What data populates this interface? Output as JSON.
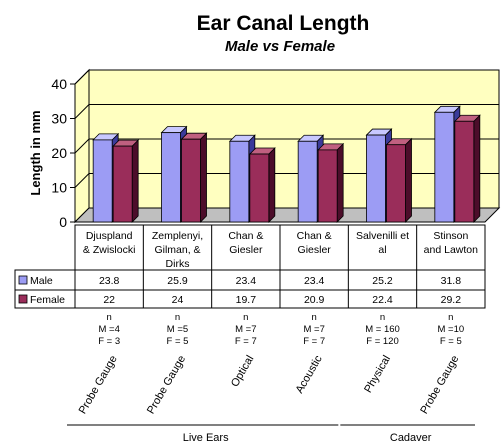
{
  "chart_data": {
    "type": "bar",
    "title": "Ear Canal Length",
    "subtitle": "Male vs Female",
    "ylabel": "Length in mm",
    "ylim": [
      0,
      40
    ],
    "yticks": [
      "0",
      "10",
      "20",
      "30",
      "40"
    ],
    "grid": true,
    "categories": [
      [
        "Djuspland",
        "& Zwislocki"
      ],
      [
        "Zemplenyi,",
        "Gilman, &",
        "Dirks"
      ],
      [
        "Chan &",
        "Giesler"
      ],
      [
        "Chan &",
        "Giesler"
      ],
      [
        "Salvenilli et",
        "al"
      ],
      [
        "Stinson",
        "and Lawton"
      ]
    ],
    "series": [
      {
        "name": "Male",
        "values": [
          23.8,
          25.9,
          23.4,
          23.4,
          25.2,
          31.8
        ],
        "value_labels": [
          "23.8",
          "25.9",
          "23.4",
          "23.4",
          "25.2",
          "31.8"
        ],
        "color": "#9c9cf4"
      },
      {
        "name": "Female",
        "values": [
          22,
          24,
          19.7,
          20.9,
          22.4,
          29.2
        ],
        "value_labels": [
          "22",
          "24",
          "19.7",
          "20.9",
          "22.4",
          "29.2"
        ],
        "color": "#9a2d5a"
      }
    ],
    "sample_sizes": [
      [
        "n",
        "M =4",
        "F = 3"
      ],
      [
        "n",
        "M =5",
        "F = 5"
      ],
      [
        "n",
        "M =7",
        "F = 7"
      ],
      [
        "n",
        "M =7",
        "F = 7"
      ],
      [
        "n",
        "M = 160",
        "F = 120"
      ],
      [
        "n",
        "M =10",
        "F = 5"
      ]
    ],
    "methods": [
      "Probe Gauge",
      "Probe Gauge",
      "Optical",
      "Acoustic",
      "Physical",
      "Probe Gauge"
    ],
    "groups": [
      {
        "label": "Live Ears",
        "from": 0,
        "to": 3
      },
      {
        "label": "Cadaver",
        "from": 4,
        "to": 5
      }
    ],
    "colors": {
      "wall": "#ffffc0",
      "floor": "#bfbfbf",
      "male_front": "#9c9cf4",
      "male_side": "#3b3b9a",
      "male_top": "#c8c8ff",
      "female_front": "#9a2d5a",
      "female_side": "#4c0d2a",
      "female_top": "#c06080"
    }
  }
}
